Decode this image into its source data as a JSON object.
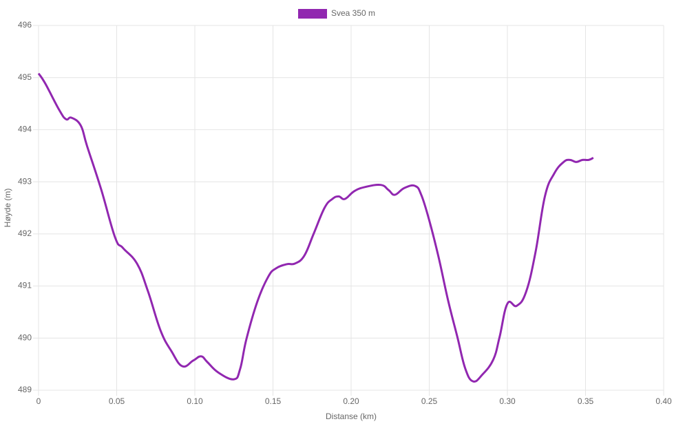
{
  "chart_data": {
    "type": "line",
    "xlabel": "Distanse (km)",
    "ylabel": "Høyde (m)",
    "series": [
      {
        "name": "Svea 350 m",
        "color": "#9127b0",
        "x": [
          0,
          0.0044,
          0.0132,
          0.0176,
          0.021,
          0.027,
          0.031,
          0.04,
          0.049,
          0.054,
          0.063,
          0.07,
          0.078,
          0.085,
          0.092,
          0.099,
          0.104,
          0.108,
          0.115,
          0.125,
          0.129,
          0.133,
          0.14,
          0.147,
          0.152,
          0.159,
          0.164,
          0.17,
          0.176,
          0.183,
          0.188,
          0.192,
          0.196,
          0.202,
          0.209,
          0.219,
          0.224,
          0.228,
          0.234,
          0.241,
          0.245,
          0.25,
          0.256,
          0.262,
          0.268,
          0.273,
          0.278,
          0.284,
          0.291,
          0.295,
          0.3,
          0.306,
          0.312,
          0.318,
          0.324,
          0.33,
          0.336,
          0.34,
          0.344,
          0.348,
          0.352,
          0.355
        ],
        "values": [
          495.08,
          494.88,
          494.38,
          494.2,
          494.23,
          494.08,
          493.69,
          492.86,
          491.93,
          491.73,
          491.43,
          490.9,
          490.15,
          489.75,
          489.46,
          489.57,
          489.65,
          489.54,
          489.34,
          489.21,
          489.41,
          489.98,
          490.7,
          491.18,
          491.34,
          491.42,
          491.43,
          491.58,
          492.0,
          492.5,
          492.67,
          492.72,
          492.67,
          492.82,
          492.9,
          492.94,
          492.84,
          492.75,
          492.88,
          492.92,
          492.74,
          492.26,
          491.55,
          490.73,
          490.02,
          489.42,
          489.17,
          489.3,
          489.59,
          490.02,
          490.66,
          490.62,
          490.89,
          491.65,
          492.72,
          493.16,
          493.38,
          493.42,
          493.38,
          493.42,
          493.42,
          493.46
        ]
      }
    ],
    "xlim": [
      0,
      0.4
    ],
    "xticks": [
      0,
      0.05,
      {
        "value": 0.1,
        "label": "0.10"
      },
      0.15,
      {
        "value": 0.2,
        "label": "0.20"
      },
      0.25,
      {
        "value": 0.3,
        "label": "0.30"
      },
      0.35,
      {
        "value": 0.4,
        "label": "0.40"
      }
    ],
    "ylim": [
      489,
      496
    ],
    "yticks": [
      489,
      490,
      491,
      492,
      493,
      494,
      495,
      496
    ],
    "grid": true,
    "legend": "top"
  }
}
